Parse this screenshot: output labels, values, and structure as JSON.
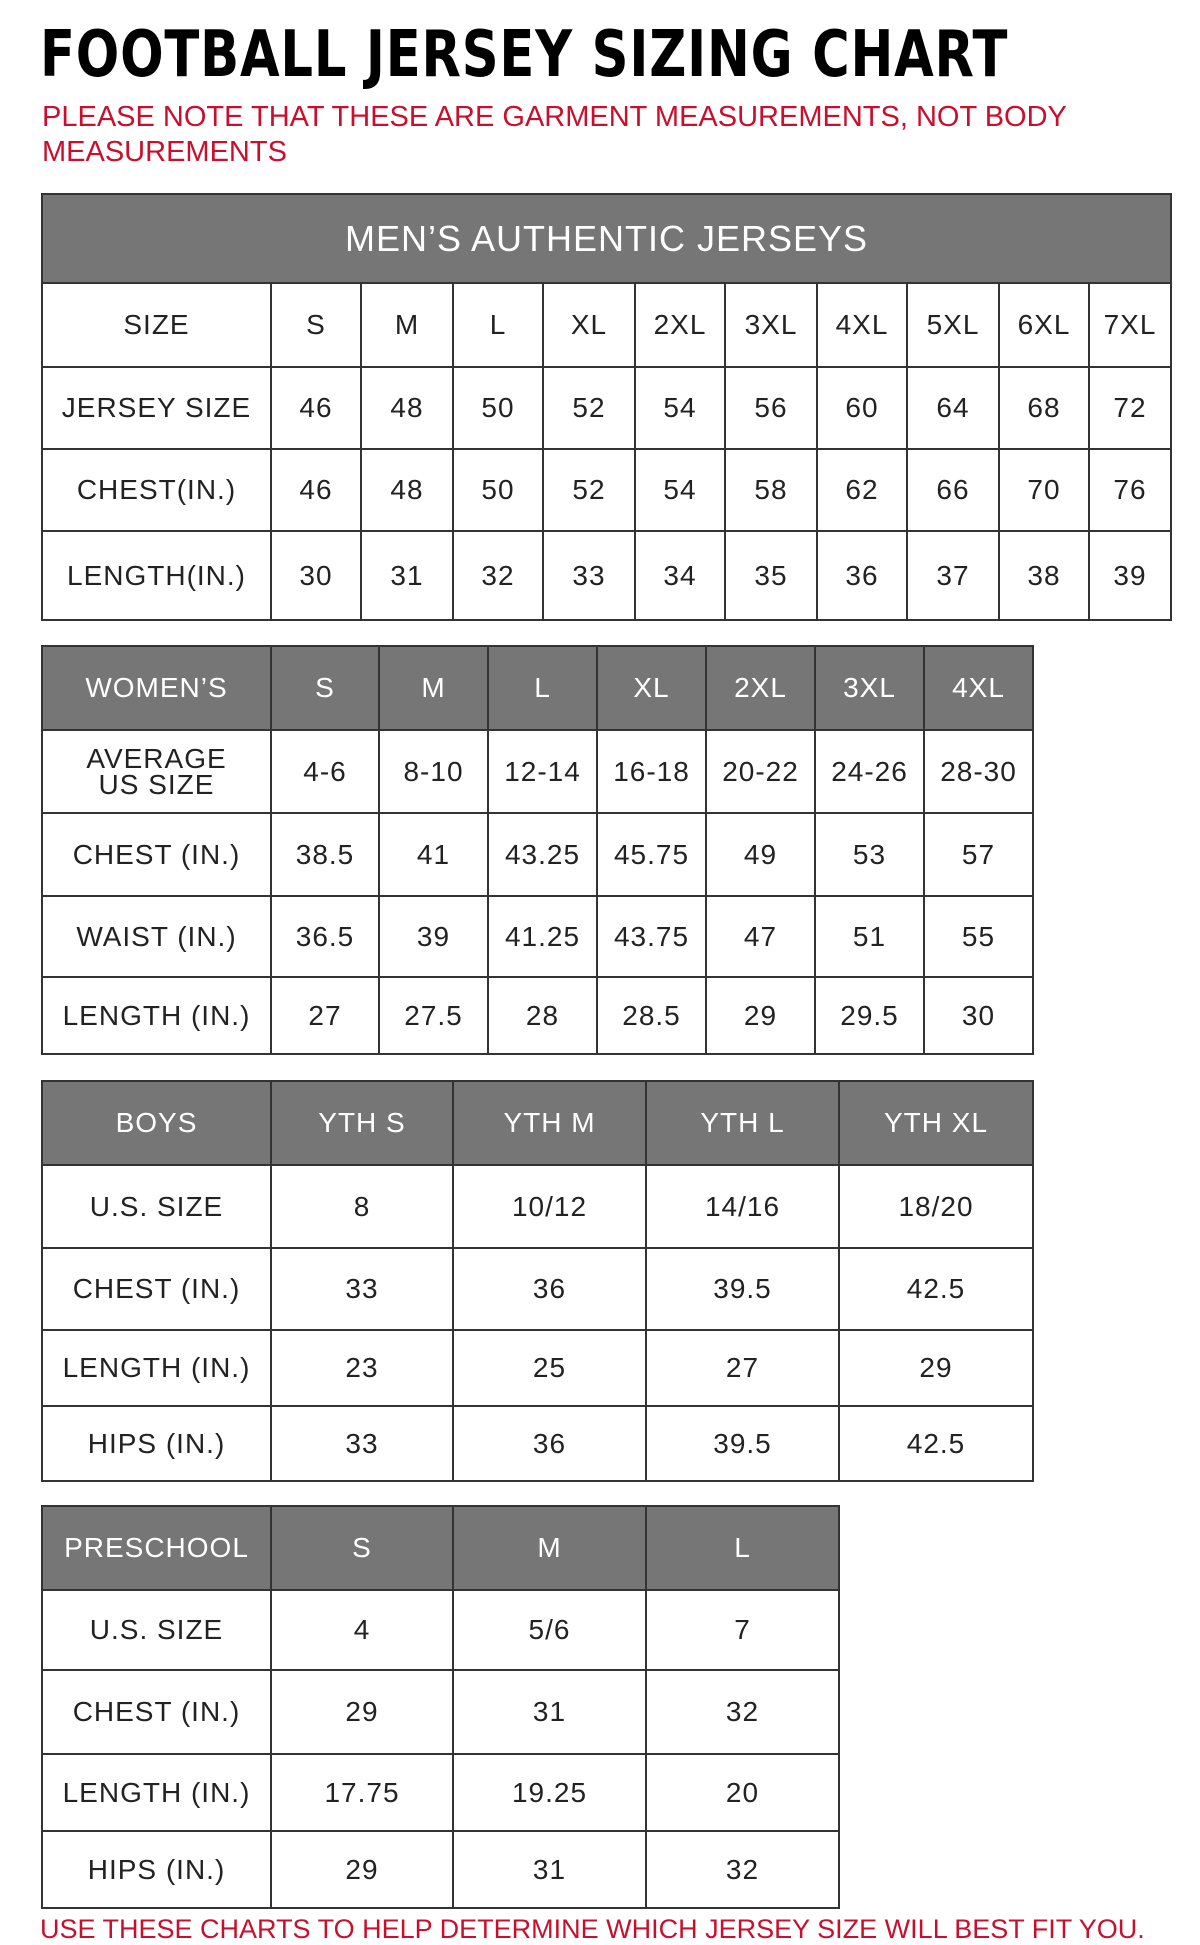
{
  "title": "FOOTBALL JERSEY SIZING CHART",
  "note": "PLEASE NOTE THAT THESE ARE GARMENT MEASUREMENTS, NOT BODY MEASUREMENTS",
  "footer": "USE THESE CHARTS TO HELP DETERMINE WHICH JERSEY SIZE WILL BEST FIT YOU.",
  "colors": {
    "header_bg": "#767676",
    "note_red": "#c8102e"
  },
  "tables": [
    {
      "name": "mens",
      "banner": "MEN’S AUTHENTIC JERSEYS",
      "header": [
        "SIZE",
        "S",
        "M",
        "L",
        "XL",
        "2XL",
        "3XL",
        "4XL",
        "5XL",
        "6XL",
        "7XL"
      ],
      "rows": [
        [
          "JERSEY SIZE",
          "46",
          "48",
          "50",
          "52",
          "54",
          "56",
          "60",
          "64",
          "68",
          "72"
        ],
        [
          "CHEST(IN.)",
          "46",
          "48",
          "50",
          "52",
          "54",
          "58",
          "62",
          "66",
          "70",
          "76"
        ],
        [
          "LENGTH(IN.)",
          "30",
          "31",
          "32",
          "33",
          "34",
          "35",
          "36",
          "37",
          "38",
          "39"
        ]
      ]
    },
    {
      "name": "womens",
      "header": [
        "WOMEN’S",
        "S",
        "M",
        "L",
        "XL",
        "2XL",
        "3XL",
        "4XL"
      ],
      "rows": [
        [
          "AVERAGE US SIZE",
          "4-6",
          "8-10",
          "12-14",
          "16-18",
          "20-22",
          "24-26",
          "28-30"
        ],
        [
          "CHEST (IN.)",
          "38.5",
          "41",
          "43.25",
          "45.75",
          "49",
          "53",
          "57"
        ],
        [
          "WAIST (IN.)",
          "36.5",
          "39",
          "41.25",
          "43.75",
          "47",
          "51",
          "55"
        ],
        [
          "LENGTH (IN.)",
          "27",
          "27.5",
          "28",
          "28.5",
          "29",
          "29.5",
          "30"
        ]
      ]
    },
    {
      "name": "boys",
      "header": [
        "BOYS",
        "YTH S",
        "YTH M",
        "YTH L",
        "YTH XL"
      ],
      "rows": [
        [
          "U.S. SIZE",
          "8",
          "10/12",
          "14/16",
          "18/20"
        ],
        [
          "CHEST (IN.)",
          "33",
          "36",
          "39.5",
          "42.5"
        ],
        [
          "LENGTH (IN.)",
          "23",
          "25",
          "27",
          "29"
        ],
        [
          "HIPS (IN.)",
          "33",
          "36",
          "39.5",
          "42.5"
        ]
      ]
    },
    {
      "name": "preschool",
      "header": [
        "PRESCHOOL",
        "S",
        "M",
        "L"
      ],
      "rows": [
        [
          "U.S. SIZE",
          "4",
          "5/6",
          "7"
        ],
        [
          "CHEST (IN.)",
          "29",
          "31",
          "32"
        ],
        [
          "LENGTH (IN.)",
          "17.75",
          "19.25",
          "20"
        ],
        [
          "HIPS (IN.)",
          "29",
          "31",
          "32"
        ]
      ]
    }
  ]
}
